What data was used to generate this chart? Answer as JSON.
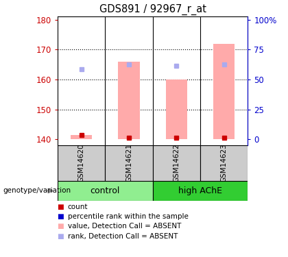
{
  "title": "GDS891 / 92967_r_at",
  "samples": [
    "GSM14620",
    "GSM14621",
    "GSM14622",
    "GSM14623"
  ],
  "bar_values": [
    141.5,
    166.0,
    160.0,
    172.0
  ],
  "bar_bottom": 140,
  "bar_color": "#ffaaaa",
  "rank_squares": [
    163.5,
    165.0,
    164.5,
    165.0
  ],
  "rank_color": "#aaaaee",
  "count_squares": [
    141.5,
    140.5,
    140.5,
    140.5
  ],
  "count_color": "#cc0000",
  "ylim_left": [
    138,
    181
  ],
  "yticks_left": [
    140,
    150,
    160,
    170,
    180
  ],
  "ytick_right_vals": [
    0,
    25,
    50,
    75,
    100
  ],
  "ytick_right_labels": [
    "0",
    "25",
    "50",
    "75",
    "100%"
  ],
  "left_axis_color": "#cc0000",
  "right_axis_color": "#0000cc",
  "genotype_label": "genotype/variation",
  "group_label_1": "control",
  "group_label_2": "high AChE",
  "light_green": "#90ee90",
  "bright_green": "#32cd32",
  "sample_box_color": "#cccccc",
  "legend_items": [
    {
      "label": "count",
      "color": "#cc0000"
    },
    {
      "label": "percentile rank within the sample",
      "color": "#0000cc"
    },
    {
      "label": "value, Detection Call = ABSENT",
      "color": "#ffaaaa"
    },
    {
      "label": "rank, Detection Call = ABSENT",
      "color": "#aaaaee"
    }
  ],
  "bar_width": 0.45
}
